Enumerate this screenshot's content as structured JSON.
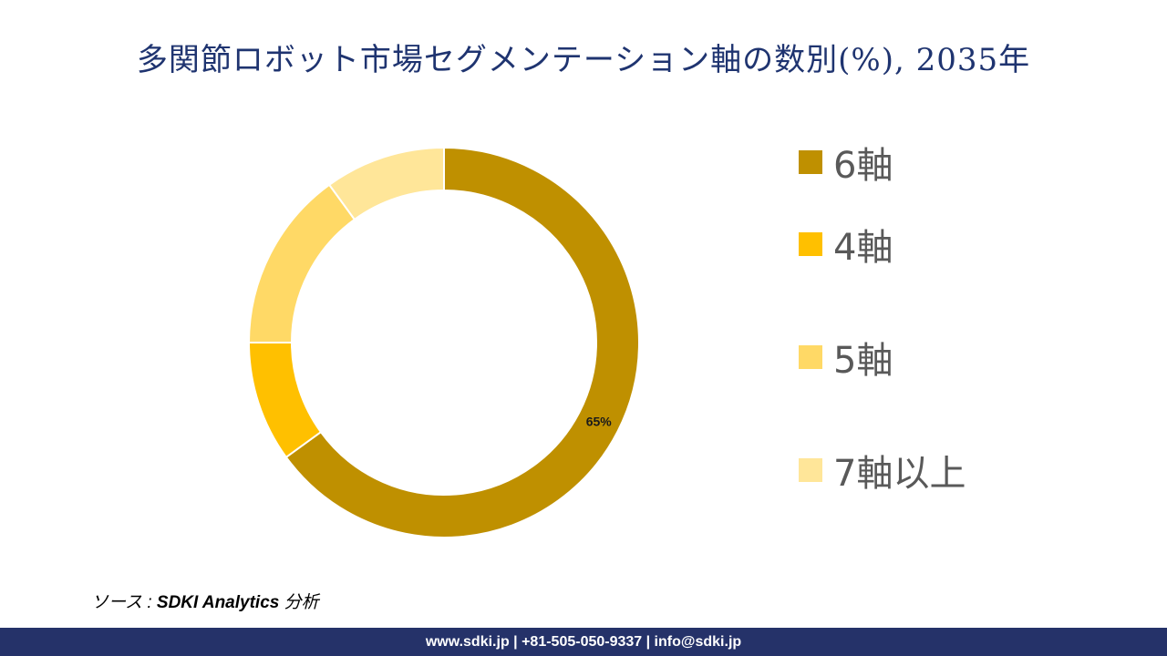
{
  "chart_data": {
    "type": "pie",
    "subtype": "donut",
    "title": "多関節ロボット市場セグメンテーション軸の数別(%), 2035年",
    "categories": [
      "6軸",
      "4軸",
      "5軸",
      "7軸以上"
    ],
    "values": [
      65,
      10,
      15,
      10
    ],
    "data_labels": [
      "65%",
      "",
      "",
      ""
    ],
    "colors": [
      "#BF9000",
      "#FFC000",
      "#FFD966",
      "#FFE699"
    ],
    "legend_position": "right"
  },
  "source": {
    "prefix": "ソース : ",
    "name": "SDKI Analytics",
    "suffix": " 分析"
  },
  "footer": "www.sdki.jp | +81-505-050-9337 | info@sdki.jp"
}
